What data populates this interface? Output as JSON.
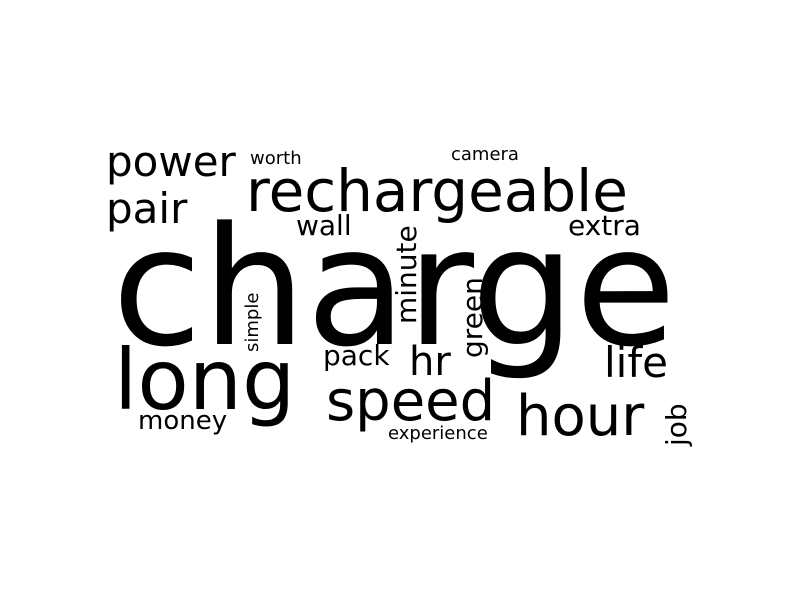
{
  "background": "#ffffff",
  "ink_color": "#000000",
  "words": {
    "charge": "charge",
    "rechargeable": "rechargeable",
    "long": "long",
    "speed": "speed",
    "hour": "hour",
    "power": "power",
    "pair": "pair",
    "life": "life",
    "hr": "hr",
    "pack": "pack",
    "wall": "wall",
    "extra": "extra",
    "money": "money",
    "worth": "worth",
    "camera": "camera",
    "experience": "experience",
    "minute": "minute",
    "green": "green",
    "simple": "simple",
    "job": "job"
  }
}
